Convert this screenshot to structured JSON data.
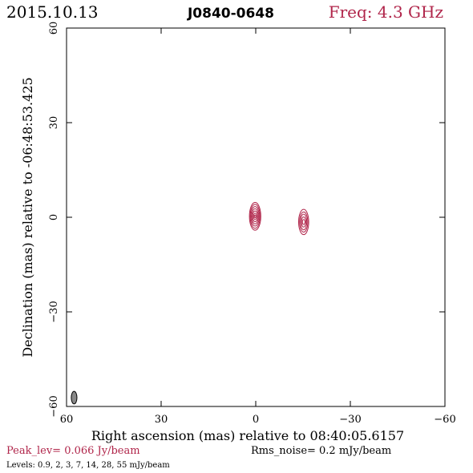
{
  "header": {
    "date": "2015.10.13",
    "source": "J0840-0648",
    "frequency": "Freq: 4.3 GHz"
  },
  "footer": {
    "peak": "Peak_lev=  0.066 Jy/beam",
    "rms": "Rms_noise=   0.2 mJy/beam",
    "levels": "Levels: 0.9,    2,    3,    7,   14,   28,   55 mJy/beam"
  },
  "colors": {
    "accent": "#b0254a",
    "axis": "#000000",
    "beam_fill": "#888888"
  },
  "chart_data": {
    "type": "contour",
    "xlabel": "Right ascension (mas) relative to 08:40:05.6157",
    "ylabel": "Declination (mas) relative to -06:48:53.425",
    "xlim": [
      60,
      -60
    ],
    "ylim": [
      -60,
      60
    ],
    "xticks": [
      60,
      30,
      0,
      -30,
      -60
    ],
    "yticks": [
      60,
      30,
      0,
      -30,
      -60
    ],
    "xtick_labels": [
      "60",
      "30",
      "0",
      "−30",
      "−60"
    ],
    "ytick_labels": [
      "60",
      "30",
      "0",
      "−30",
      "−60"
    ],
    "contour_levels_mJy": [
      0.9,
      2,
      3,
      7,
      14,
      28,
      55
    ],
    "peak_Jy_per_beam": 0.066,
    "rms_mJy_per_beam": 0.2,
    "components": [
      {
        "x": 0.2,
        "y": 0.3,
        "contours": [
          {
            "rx": 1.8,
            "ry": 4.4
          },
          {
            "rx": 1.55,
            "ry": 3.8
          },
          {
            "rx": 1.3,
            "ry": 3.1
          },
          {
            "rx": 1.05,
            "ry": 2.4
          },
          {
            "rx": 0.8,
            "ry": 1.7
          },
          {
            "rx": 0.5,
            "ry": 1.0
          },
          {
            "rx": 0.25,
            "ry": 0.4
          }
        ]
      },
      {
        "x": -15.2,
        "y": -1.5,
        "contours": [
          {
            "rx": 1.6,
            "ry": 4.0
          },
          {
            "rx": 1.3,
            "ry": 3.2
          },
          {
            "rx": 1.0,
            "ry": 2.5
          },
          {
            "rx": 0.7,
            "ry": 1.6
          },
          {
            "rx": 0.4,
            "ry": 0.8
          }
        ]
      }
    ],
    "beam": {
      "x": 57.6,
      "y": -57.2,
      "major": 4.0,
      "minor": 1.8,
      "pa_deg": 0
    }
  }
}
